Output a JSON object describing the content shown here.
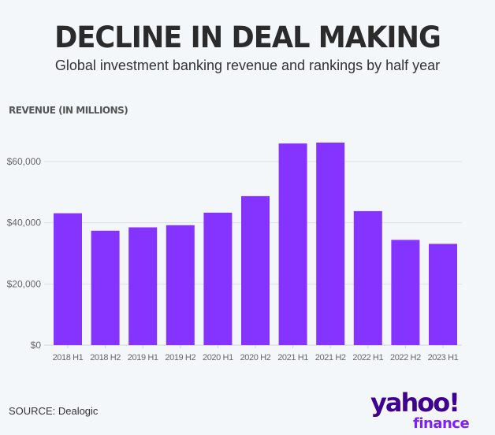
{
  "header": {
    "title": "DECLINE IN DEAL MAKING",
    "subtitle": "Global investment banking revenue and rankings by half year"
  },
  "footer": {
    "source": "SOURCE: Dealogic",
    "logo_main": "yahoo!",
    "logo_sub": "finance"
  },
  "chart_data": {
    "type": "bar",
    "title": "DECLINE IN DEAL MAKING",
    "subtitle": "Global investment banking revenue and rankings by half year",
    "ylabel": "REVENUE (IN MILLIONS)",
    "xlabel": "",
    "categories": [
      "2018 H1",
      "2018 H2",
      "2019 H1",
      "2019 H2",
      "2020 H1",
      "2020 H2",
      "2021 H1",
      "2021 H2",
      "2022 H1",
      "2022 H2",
      "2023 H1"
    ],
    "values": [
      43100,
      37400,
      38500,
      39200,
      43300,
      48700,
      65900,
      66200,
      43800,
      34400,
      33100
    ],
    "ylim": [
      0,
      60000
    ],
    "yticks": [
      0,
      20000,
      40000,
      60000
    ],
    "ytick_labels": [
      "$0",
      "$20,000",
      "$40,000",
      "$60,000"
    ],
    "grid": true,
    "legend": "none",
    "bar_color": "#8533ff"
  }
}
